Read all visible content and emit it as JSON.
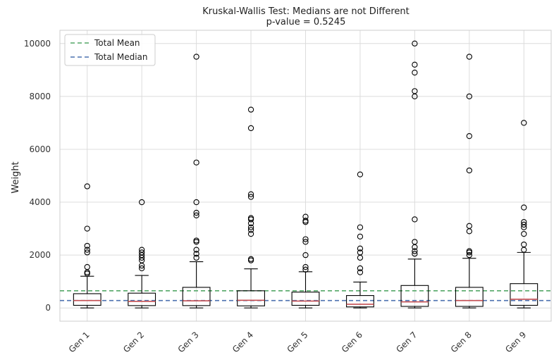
{
  "chart_data": {
    "type": "box",
    "title": "Kruskal-Wallis Test: Medians are not Different",
    "subtitle": "p-value = 0.5245",
    "xlabel": "",
    "ylabel": "Weight",
    "ylim": [
      -500,
      10500
    ],
    "y_ticks": [
      0,
      2000,
      4000,
      6000,
      8000,
      10000
    ],
    "y_tick_labels": [
      "0",
      "2000",
      "4000",
      "6000",
      "8000",
      "10000"
    ],
    "grid": true,
    "legend_position": "top-left",
    "categories": [
      "Gen 1",
      "Gen 2",
      "Gen 3",
      "Gen 4",
      "Gen 5",
      "Gen 6",
      "Gen 7",
      "Gen 8",
      "Gen 9"
    ],
    "boxes": [
      {
        "whisker_low": 0,
        "q1": 100,
        "median": 280,
        "q3": 540,
        "whisker_high": 1200,
        "fliers": [
          1300,
          1350,
          1550,
          2100,
          2200,
          2350,
          3000,
          4600
        ]
      },
      {
        "whisker_low": 0,
        "q1": 90,
        "median": 250,
        "q3": 560,
        "whisker_high": 1230,
        "fliers": [
          1500,
          1600,
          1800,
          1900,
          2000,
          2100,
          2200,
          4000
        ]
      },
      {
        "whisker_low": 0,
        "q1": 90,
        "median": 270,
        "q3": 780,
        "whisker_high": 1750,
        "fliers": [
          1900,
          2050,
          2200,
          2500,
          2550,
          3500,
          3600,
          4000,
          5500,
          9500
        ]
      },
      {
        "whisker_low": 0,
        "q1": 80,
        "median": 290,
        "q3": 650,
        "whisker_high": 1480,
        "fliers": [
          1800,
          1850,
          2800,
          2950,
          3050,
          3200,
          3350,
          3400,
          4200,
          4300,
          6800,
          7500
        ]
      },
      {
        "whisker_low": 0,
        "q1": 100,
        "median": 260,
        "q3": 600,
        "whisker_high": 1370,
        "fliers": [
          1450,
          1550,
          2000,
          2500,
          2600,
          3250,
          3300,
          3450
        ]
      },
      {
        "whisker_low": 0,
        "q1": 40,
        "median": 140,
        "q3": 470,
        "whisker_high": 980,
        "fliers": [
          1350,
          1500,
          1900,
          2100,
          2250,
          2700,
          3050,
          5050
        ]
      },
      {
        "whisker_low": 0,
        "q1": 60,
        "median": 230,
        "q3": 850,
        "whisker_high": 1850,
        "fliers": [
          2050,
          2150,
          2300,
          2500,
          3350,
          8000,
          8200,
          8900,
          9200,
          10000
        ]
      },
      {
        "whisker_low": 0,
        "q1": 60,
        "median": 280,
        "q3": 780,
        "whisker_high": 1880,
        "fliers": [
          2000,
          2100,
          2150,
          2900,
          3100,
          5200,
          6500,
          8000,
          9500
        ]
      },
      {
        "whisker_low": 0,
        "q1": 100,
        "median": 330,
        "q3": 920,
        "whisker_high": 2100,
        "fliers": [
          2200,
          2400,
          2800,
          3050,
          3150,
          3250,
          3800,
          7000
        ]
      }
    ],
    "reference_lines": [
      {
        "name": "Total Mean",
        "value": 650,
        "color": "#55a868",
        "style": "dashed"
      },
      {
        "name": "Total Median",
        "value": 280,
        "color": "#4c72b0",
        "style": "dashed"
      }
    ],
    "median_color": "#c44e52",
    "box_color": "#000000",
    "grid_color": "#dcdcdc"
  }
}
